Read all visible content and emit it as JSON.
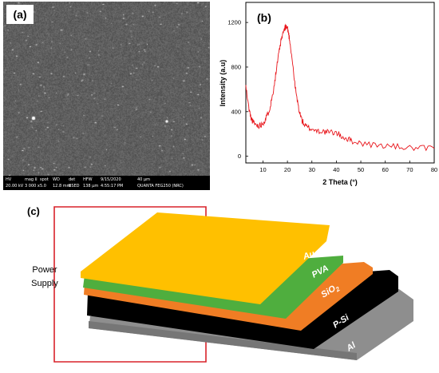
{
  "panel_a": {
    "label": "(a)",
    "sem_footer": {
      "row1": [
        "HV",
        "mag ⌷",
        "spot",
        "WD",
        "det",
        "HFW",
        "9/15/2020",
        "40 µm"
      ],
      "row2": [
        "20.00 kV",
        "3 000 x",
        "5.0",
        "12.8 mm",
        "BSED",
        "138 µm",
        "4:55:17 PM",
        "QUANTA FEG250 (NRC)"
      ]
    }
  },
  "panel_b": {
    "label": "(b)"
  },
  "chart_data": {
    "type": "line",
    "title": "",
    "xlabel": "2 Theta (°)",
    "ylabel": "Intensity (a.u)",
    "xlim": [
      3,
      80
    ],
    "ylim": [
      -60,
      1380
    ],
    "xticks": [
      10,
      20,
      30,
      40,
      50,
      60,
      70,
      80
    ],
    "yticks": [
      0,
      400,
      800,
      1200
    ],
    "line_color": "#e8141a",
    "series": [
      {
        "x": [
          3,
          4,
          5,
          6,
          7,
          8,
          9,
          10,
          11,
          12,
          13,
          14,
          15,
          16,
          17,
          18,
          19,
          19.5,
          20,
          20.5,
          21,
          22,
          23,
          24,
          25,
          26,
          27,
          28,
          30,
          32,
          34,
          36,
          38,
          40,
          42,
          44,
          46,
          50,
          55,
          60,
          65,
          70,
          75,
          80
        ],
        "values": [
          630,
          460,
          350,
          305,
          285,
          275,
          280,
          300,
          330,
          380,
          450,
          560,
          700,
          850,
          990,
          1090,
          1150,
          1160,
          1150,
          1100,
          1030,
          860,
          650,
          500,
          390,
          320,
          280,
          260,
          245,
          230,
          225,
          215,
          215,
          210,
          180,
          160,
          140,
          120,
          100,
          95,
          85,
          75,
          70,
          70
        ]
      }
    ]
  },
  "panel_c": {
    "label": "(c)",
    "power_supply_label": [
      "Power",
      "Supply"
    ],
    "layers": {
      "au": "Au",
      "pva": "PVA",
      "sio2_base": "SiO",
      "sio2_sub": "2",
      "psi": "P-Si",
      "al": "Al"
    },
    "colors": {
      "au": "#ffc000",
      "pva": "#4fae3e",
      "sio2": "#f07d24",
      "psi": "#000000",
      "al": "#8e8e8e",
      "wire": "#d9222a"
    }
  }
}
